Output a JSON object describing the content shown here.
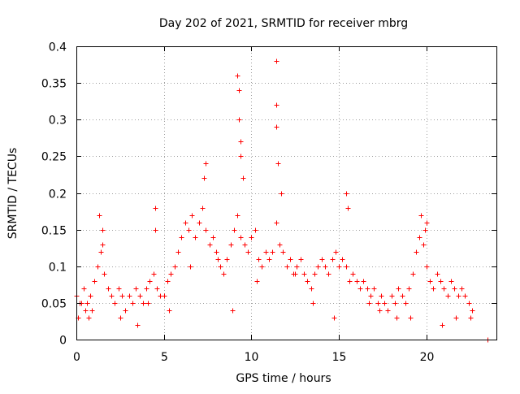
{
  "chart_data": {
    "type": "scatter",
    "title": "Day 202 of 2021, SRMTID for receiver mbrg",
    "xlabel": "GPS time / hours",
    "ylabel": "SRMTID / TECUs",
    "xlim": [
      0,
      24
    ],
    "ylim": [
      0,
      0.4
    ],
    "xticks": [
      0,
      5,
      10,
      15,
      20
    ],
    "xtick_labels": [
      "0",
      "5",
      "10",
      "15",
      "20"
    ],
    "yticks": [
      0,
      0.05,
      0.1,
      0.15,
      0.2,
      0.25,
      0.3,
      0.35,
      0.4
    ],
    "ytick_labels": [
      "0",
      "0.05",
      "0.1",
      "0.15",
      "0.2",
      "0.25",
      "0.3",
      "0.35",
      "0.4"
    ],
    "grid": true,
    "marker": "+",
    "marker_color": "#ff0000",
    "series": [
      {
        "name": "SRMTID",
        "x": [
          0.0,
          0.2,
          0.4,
          0.6,
          0.8,
          1.0,
          1.2,
          1.4,
          1.6,
          1.8,
          2.0,
          2.2,
          2.4,
          2.6,
          2.8,
          3.0,
          3.2,
          3.4,
          3.6,
          3.8,
          4.0,
          4.2,
          4.4,
          4.6,
          4.8,
          5.0,
          5.2,
          5.4,
          5.6,
          5.8,
          6.0,
          6.2,
          6.4,
          6.6,
          6.8,
          7.0,
          7.2,
          7.4,
          7.6,
          7.8,
          8.0,
          8.2,
          8.4,
          8.6,
          8.8,
          9.0,
          9.2,
          9.4,
          9.6,
          9.8,
          10.0,
          10.2,
          10.4,
          10.6,
          10.8,
          11.0,
          11.2,
          11.4,
          11.6,
          11.8,
          12.0,
          12.2,
          12.4,
          12.6,
          12.8,
          13.0,
          13.2,
          13.4,
          13.6,
          13.8,
          14.0,
          14.2,
          14.4,
          14.6,
          14.8,
          15.0,
          15.2,
          15.4,
          15.6,
          15.8,
          16.0,
          16.2,
          16.4,
          16.6,
          16.8,
          17.0,
          17.2,
          17.4,
          17.6,
          17.8,
          18.0,
          18.2,
          18.4,
          18.6,
          18.8,
          19.0,
          19.2,
          19.4,
          19.6,
          19.8,
          20.0,
          20.2,
          20.4,
          20.6,
          20.8,
          21.0,
          21.2,
          21.4,
          21.6,
          21.8,
          22.0,
          22.2,
          22.4,
          22.6,
          0.1,
          0.3,
          0.5,
          0.7,
          1.3,
          1.5,
          1.5,
          4.5,
          4.5,
          7.3,
          7.4,
          9.2,
          9.3,
          9.3,
          9.4,
          9.5,
          9.4,
          11.4,
          11.4,
          11.4,
          11.5,
          11.7,
          15.4,
          15.5,
          19.7,
          19.9,
          20.0,
          23.5,
          0.9,
          2.5,
          3.5,
          4.1,
          5.3,
          6.5,
          8.1,
          8.9,
          10.3,
          12.5,
          13.5,
          14.7,
          16.7,
          17.3,
          18.3,
          19.1,
          20.9,
          21.7,
          22.5
        ],
        "y": [
          0.06,
          0.05,
          0.07,
          0.05,
          0.06,
          0.08,
          0.1,
          0.12,
          0.09,
          0.07,
          0.06,
          0.05,
          0.07,
          0.06,
          0.04,
          0.06,
          0.05,
          0.07,
          0.06,
          0.05,
          0.07,
          0.08,
          0.09,
          0.07,
          0.06,
          0.06,
          0.08,
          0.09,
          0.1,
          0.12,
          0.14,
          0.16,
          0.15,
          0.17,
          0.14,
          0.16,
          0.18,
          0.15,
          0.13,
          0.14,
          0.12,
          0.1,
          0.09,
          0.11,
          0.13,
          0.15,
          0.17,
          0.14,
          0.13,
          0.12,
          0.14,
          0.15,
          0.11,
          0.1,
          0.12,
          0.11,
          0.12,
          0.16,
          0.13,
          0.12,
          0.1,
          0.11,
          0.09,
          0.1,
          0.11,
          0.09,
          0.08,
          0.07,
          0.09,
          0.1,
          0.11,
          0.1,
          0.09,
          0.11,
          0.12,
          0.1,
          0.11,
          0.1,
          0.08,
          0.09,
          0.08,
          0.07,
          0.08,
          0.07,
          0.06,
          0.07,
          0.05,
          0.06,
          0.05,
          0.04,
          0.06,
          0.05,
          0.07,
          0.06,
          0.05,
          0.07,
          0.09,
          0.12,
          0.14,
          0.13,
          0.1,
          0.08,
          0.07,
          0.09,
          0.08,
          0.07,
          0.06,
          0.08,
          0.07,
          0.06,
          0.07,
          0.06,
          0.05,
          0.04,
          0.03,
          0.05,
          0.04,
          0.03,
          0.17,
          0.15,
          0.13,
          0.18,
          0.15,
          0.22,
          0.24,
          0.36,
          0.34,
          0.3,
          0.27,
          0.22,
          0.25,
          0.38,
          0.32,
          0.29,
          0.24,
          0.2,
          0.2,
          0.18,
          0.17,
          0.15,
          0.16,
          0.0,
          0.04,
          0.03,
          0.02,
          0.05,
          0.04,
          0.1,
          0.11,
          0.04,
          0.08,
          0.09,
          0.05,
          0.03,
          0.05,
          0.04,
          0.03,
          0.03,
          0.02,
          0.03,
          0.03
        ]
      }
    ]
  }
}
